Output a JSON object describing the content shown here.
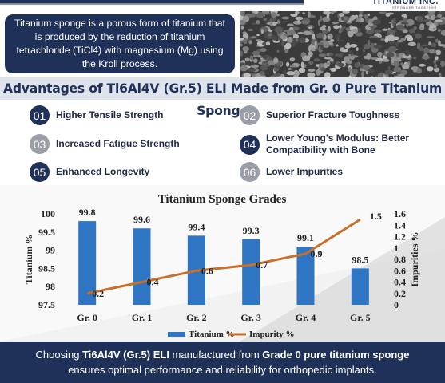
{
  "brand": {
    "name": "TITANIUM INC.",
    "tagline": "STRONGER TOGETHER"
  },
  "intro": {
    "text": "Titanium sponge is a porous form of titanium that is produced by the reduction of titanium tetrachloride (TiCl4) with magnesium (Mg) using the Kroll process."
  },
  "advantages": {
    "title": "Advantages of Ti6Al4V (Gr.5) ELI Made from Gr. 0 Pure Titanium Sponge",
    "items": [
      {
        "num": "01",
        "label": "Higher Tensile Strength"
      },
      {
        "num": "02",
        "label": "Superior Fracture Toughness"
      },
      {
        "num": "03",
        "label": "Increased Fatigue Strength"
      },
      {
        "num": "04",
        "label": "Lower Young's Modulus: Better Compatibility with Bone"
      },
      {
        "num": "05",
        "label": "Enhanced Longevity"
      },
      {
        "num": "06",
        "label": "Lower Impurities"
      }
    ]
  },
  "chart_data": {
    "type": "bar",
    "title": "Titanium Sponge Grades",
    "categories": [
      "Gr. 0",
      "Gr. 1",
      "Gr. 2",
      "Gr. 3",
      "Gr. 4",
      "Gr. 5"
    ],
    "series": [
      {
        "name": "Titanium %",
        "type": "bar",
        "axis": "left",
        "values": [
          99.8,
          99.6,
          99.4,
          99.3,
          99.1,
          98.5
        ],
        "color": "#2e75c4"
      },
      {
        "name": "Impurity %",
        "type": "line",
        "axis": "right",
        "values": [
          0.2,
          0.4,
          0.6,
          0.7,
          0.9,
          1.5
        ],
        "color": "#c8702a"
      }
    ],
    "ylabel": "Titanium %",
    "y2label": "Impurities %",
    "ylim": [
      97.5,
      100
    ],
    "yticks": [
      "97.5",
      "98",
      "98.5",
      "99",
      "99.5",
      "100"
    ],
    "y2lim": [
      0,
      1.6
    ],
    "y2ticks": [
      "0",
      "0.2",
      "0.4",
      "0.6",
      "0.8",
      "1",
      "1.2",
      "1.4",
      "1.6"
    ],
    "legend_position": "bottom",
    "grid": false
  },
  "footer": {
    "p1": "Choosing ",
    "b1": "Ti6Al4V (Gr.5) ELI",
    "p2": " manufactured from ",
    "b2": "Grade 0 pure titanium sponge",
    "p3": " ensures optimal performance and reliability for orthopedic implants."
  },
  "colors": {
    "navy": "#1f3158",
    "gray_badge": "#9a9ea6",
    "bar": "#2e75c4",
    "line": "#c8702a"
  }
}
